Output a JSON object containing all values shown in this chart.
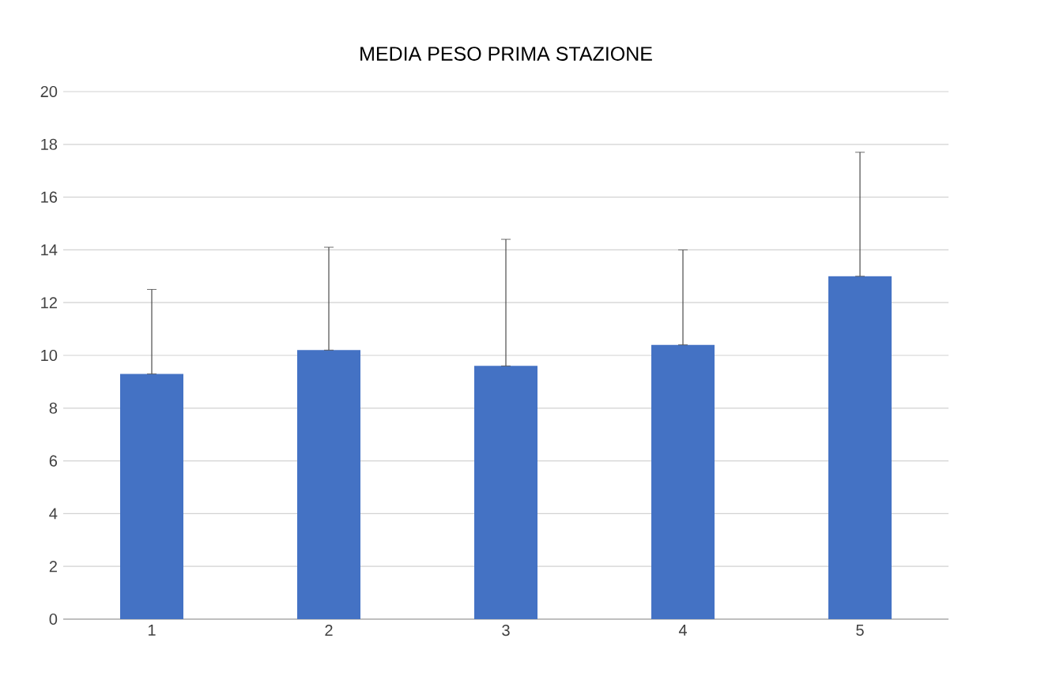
{
  "chart_data": {
    "type": "bar",
    "title": "MEDIA PESO PRIMA STAZIONE",
    "categories": [
      "1",
      "2",
      "3",
      "4",
      "5"
    ],
    "values": [
      9.3,
      10.2,
      9.6,
      10.4,
      13.0
    ],
    "errors": [
      [
        9.3,
        12.5
      ],
      [
        10.2,
        14.1
      ],
      [
        9.6,
        14.4
      ],
      [
        10.4,
        14.0
      ],
      [
        13.0,
        17.7
      ]
    ],
    "color": "#4472c4",
    "ylim": [
      0,
      20
    ],
    "yticks": [
      0,
      2,
      4,
      6,
      8,
      10,
      12,
      14,
      16,
      18,
      20
    ],
    "grid": "y"
  }
}
